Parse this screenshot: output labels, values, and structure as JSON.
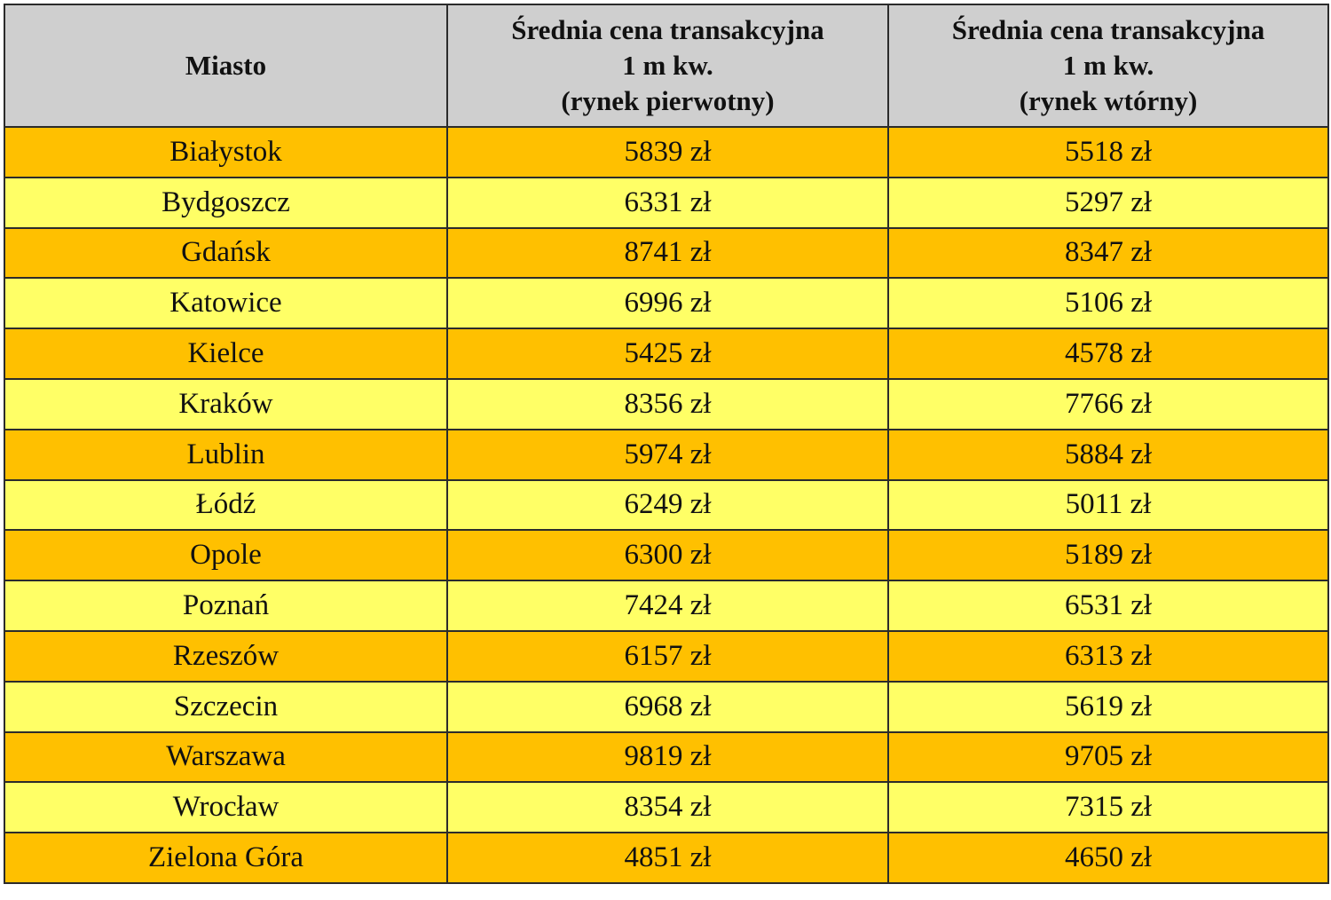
{
  "table": {
    "headers": {
      "city": "Miasto",
      "primary": {
        "line1": "Średnia cena transakcyjna",
        "line2": "1 m kw.",
        "line3": "(rynek pierwotny)"
      },
      "secondary": {
        "line1": "Średnia cena transakcyjna",
        "line2": "1 m kw.",
        "line3": "(rynek wtórny)"
      }
    },
    "colors": {
      "header_bg": "#cfcfcf",
      "row_dark": "#ffc000",
      "row_light": "#ffff66"
    },
    "rows": [
      {
        "city": "Białystok",
        "primary": "5839 zł",
        "secondary": "5518 zł"
      },
      {
        "city": "Bydgoszcz",
        "primary": "6331 zł",
        "secondary": "5297 zł"
      },
      {
        "city": "Gdańsk",
        "primary": "8741 zł",
        "secondary": "8347 zł"
      },
      {
        "city": "Katowice",
        "primary": "6996 zł",
        "secondary": "5106 zł"
      },
      {
        "city": "Kielce",
        "primary": "5425 zł",
        "secondary": "4578 zł"
      },
      {
        "city": "Kraków",
        "primary": "8356 zł",
        "secondary": "7766 zł"
      },
      {
        "city": "Lublin",
        "primary": "5974 zł",
        "secondary": "5884 zł"
      },
      {
        "city": "Łódź",
        "primary": "6249 zł",
        "secondary": "5011 zł"
      },
      {
        "city": "Opole",
        "primary": "6300 zł",
        "secondary": "5189 zł"
      },
      {
        "city": "Poznań",
        "primary": "7424 zł",
        "secondary": "6531 zł"
      },
      {
        "city": "Rzeszów",
        "primary": "6157 zł",
        "secondary": "6313 zł"
      },
      {
        "city": "Szczecin",
        "primary": "6968 zł",
        "secondary": "5619 zł"
      },
      {
        "city": "Warszawa",
        "primary": "9819 zł",
        "secondary": "9705 zł"
      },
      {
        "city": "Wrocław",
        "primary": "8354 zł",
        "secondary": "7315 zł"
      },
      {
        "city": "Zielona Góra",
        "primary": "4851 zł",
        "secondary": "4650 zł"
      }
    ]
  }
}
